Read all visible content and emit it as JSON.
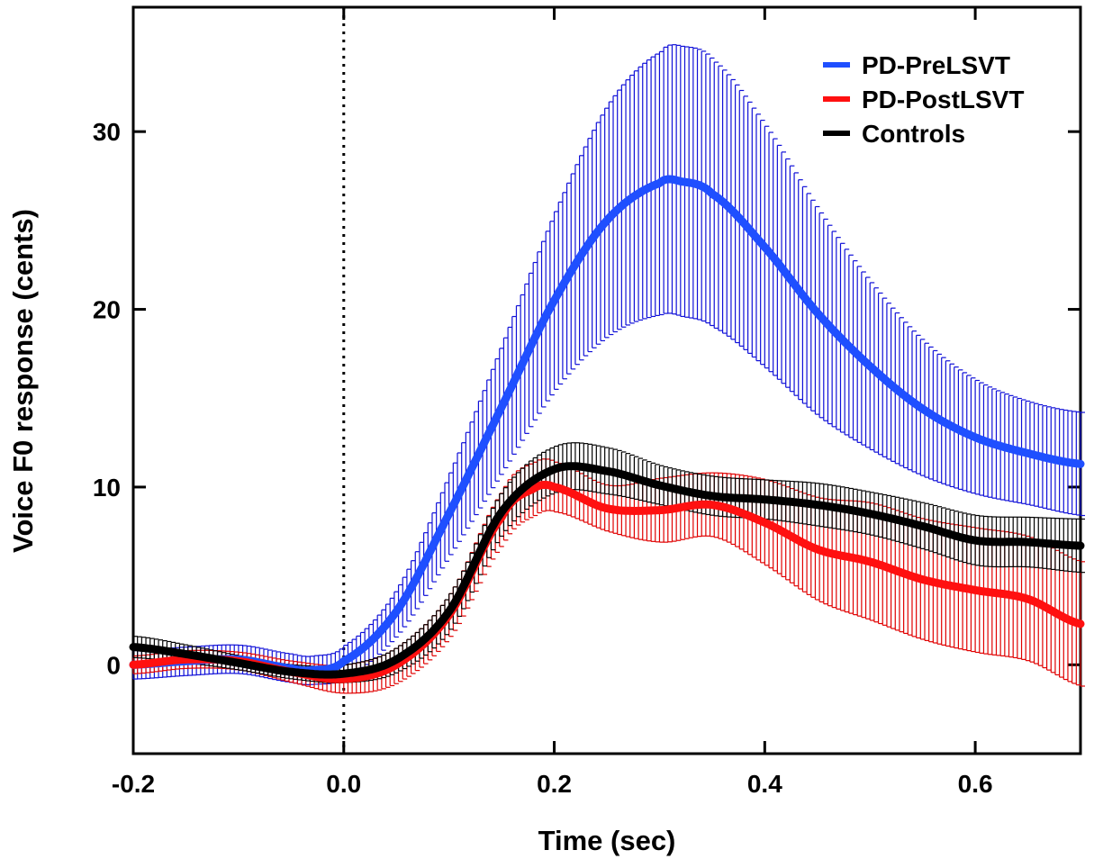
{
  "chart_data": {
    "type": "line",
    "title": "",
    "xlabel": "Time (sec)",
    "ylabel": "Voice F0 response (cents)",
    "xlim": [
      -0.2,
      0.7
    ],
    "ylim": [
      -5,
      37
    ],
    "xticks": [
      -0.2,
      0.0,
      0.2,
      0.4,
      0.6
    ],
    "xtick_labels": [
      "-0.2",
      "0.0",
      "0.2",
      "0.4",
      "0.6"
    ],
    "yticks": [
      0,
      10,
      20,
      30
    ],
    "ytick_labels": [
      "0",
      "10",
      "20",
      "30"
    ],
    "reference_line": {
      "x": 0.0,
      "style": "dotted"
    },
    "legend_position": "top-right",
    "series": [
      {
        "name": "PD-PreLSVT",
        "color": "#1f4fff",
        "error_color": "#1010d8",
        "x": [
          -0.2,
          -0.15,
          -0.1,
          -0.05,
          -0.03,
          0.0,
          0.05,
          0.1,
          0.15,
          0.2,
          0.25,
          0.3,
          0.32,
          0.35,
          0.4,
          0.45,
          0.5,
          0.55,
          0.6,
          0.65,
          0.7
        ],
        "y": [
          0.0,
          0.2,
          0.3,
          -0.2,
          -0.3,
          0.2,
          3.0,
          8.5,
          14.5,
          20.5,
          25.0,
          27.1,
          27.2,
          26.5,
          23.5,
          19.8,
          16.8,
          14.4,
          12.8,
          11.9,
          11.3
        ],
        "error": [
          0.8,
          0.8,
          0.8,
          0.8,
          0.8,
          0.9,
          1.3,
          2.3,
          3.6,
          5.0,
          6.5,
          7.4,
          7.6,
          7.5,
          6.8,
          5.8,
          4.7,
          3.8,
          3.2,
          2.9,
          2.9
        ]
      },
      {
        "name": "PD-PostLSVT",
        "color": "#ff1010",
        "error_color": "#e00000",
        "x": [
          -0.2,
          -0.15,
          -0.1,
          -0.05,
          0.0,
          0.05,
          0.1,
          0.15,
          0.18,
          0.2,
          0.25,
          0.3,
          0.35,
          0.4,
          0.45,
          0.5,
          0.55,
          0.6,
          0.65,
          0.7
        ],
        "y": [
          0.0,
          0.3,
          0.2,
          -0.4,
          -0.8,
          0.0,
          2.8,
          8.3,
          9.9,
          10.0,
          8.8,
          8.7,
          9.0,
          8.0,
          6.5,
          5.8,
          4.8,
          4.2,
          3.7,
          2.3
        ],
        "error": [
          0.5,
          0.5,
          0.5,
          0.6,
          0.8,
          1.0,
          1.2,
          1.5,
          1.5,
          1.4,
          1.3,
          1.8,
          1.8,
          2.4,
          2.9,
          3.3,
          3.4,
          3.5,
          3.5,
          3.5
        ]
      },
      {
        "name": "Controls",
        "color": "#000000",
        "error_color": "#000000",
        "x": [
          -0.2,
          -0.15,
          -0.1,
          -0.05,
          0.0,
          0.05,
          0.1,
          0.15,
          0.2,
          0.25,
          0.3,
          0.35,
          0.4,
          0.45,
          0.5,
          0.55,
          0.6,
          0.65,
          0.7
        ],
        "y": [
          1.0,
          0.6,
          0.1,
          -0.4,
          -0.5,
          0.3,
          3.0,
          8.6,
          11.0,
          10.9,
          10.1,
          9.5,
          9.3,
          9.0,
          8.5,
          7.8,
          7.0,
          6.9,
          6.7
        ],
        "error": [
          0.6,
          0.5,
          0.4,
          0.4,
          0.5,
          0.7,
          1.0,
          1.2,
          1.3,
          1.3,
          1.1,
          1.1,
          1.1,
          1.2,
          1.2,
          1.3,
          1.4,
          1.4,
          1.5
        ]
      }
    ]
  }
}
